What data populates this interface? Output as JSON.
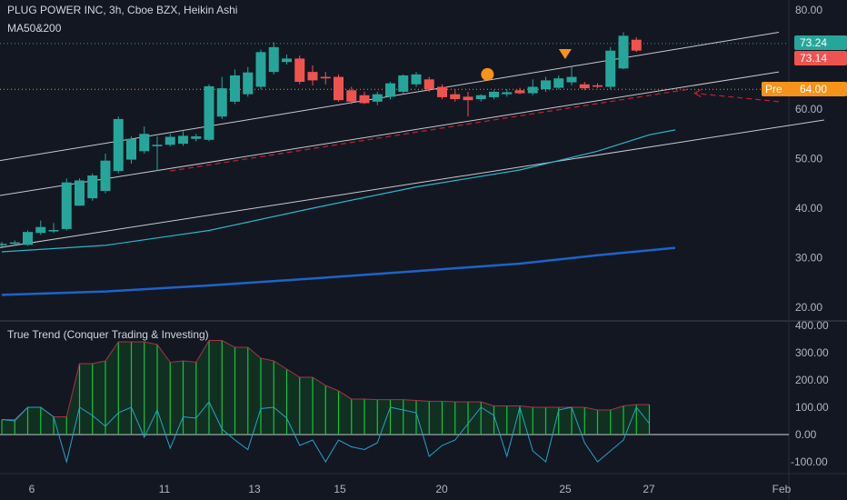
{
  "header": {
    "symbol_line": "PLUG POWER INC, 3h, Cboe BZX, Heikin Ashi",
    "indicator": "MA50&200"
  },
  "osc": {
    "title": "True Trend (Conquer Trading & Investing)"
  },
  "price_tags": {
    "last_close": "73.24",
    "last_red": "73.14",
    "pre_label": "Pre",
    "pre_value": "64.00"
  },
  "colors": {
    "background": "#131722",
    "up": "#26a69a",
    "down": "#ef5350",
    "ma50": "#2ab6c8",
    "ma200": "#1e63c9",
    "channel": "#c9c9d1",
    "pre": "#f7931a",
    "trend_fill": "#0a7d24",
    "trend_line": "#a53545",
    "signal": "#22a5c9"
  },
  "chart_data": [
    {
      "type": "candlestick",
      "title": "PLUG POWER INC, 3h, Cboe BZX, Heikin Ashi",
      "ylim": [
        16,
        83
      ],
      "y_ticks": [
        "80.00",
        "70.00",
        "60.00",
        "50.00",
        "40.00",
        "30.00",
        "20.00"
      ],
      "x_ticks": [
        "6",
        "11",
        "13",
        "15",
        "20",
        "25",
        "27",
        "Feb"
      ],
      "candles": [
        {
          "o": 32.5,
          "h": 33.2,
          "l": 32.2,
          "c": 32.8
        },
        {
          "o": 32.8,
          "h": 33.5,
          "l": 32.5,
          "c": 33.1
        },
        {
          "o": 32.6,
          "h": 35.5,
          "l": 32.4,
          "c": 35.2
        },
        {
          "o": 35.0,
          "h": 37.5,
          "l": 34.6,
          "c": 36.2
        },
        {
          "o": 35.3,
          "h": 37.0,
          "l": 35.0,
          "c": 35.6
        },
        {
          "o": 35.8,
          "h": 46.0,
          "l": 35.5,
          "c": 45.2
        },
        {
          "o": 40.5,
          "h": 46.0,
          "l": 40.5,
          "c": 45.6
        },
        {
          "o": 42.0,
          "h": 47.0,
          "l": 41.5,
          "c": 46.6
        },
        {
          "o": 43.5,
          "h": 51.0,
          "l": 43.0,
          "c": 49.6
        },
        {
          "o": 47.5,
          "h": 58.5,
          "l": 47.0,
          "c": 58.0
        },
        {
          "o": 49.8,
          "h": 54.5,
          "l": 49.0,
          "c": 54.0
        },
        {
          "o": 51.5,
          "h": 56.5,
          "l": 51.0,
          "c": 55.0
        },
        {
          "o": 52.5,
          "h": 54.5,
          "l": 47.5,
          "c": 52.8
        },
        {
          "o": 52.8,
          "h": 55.0,
          "l": 52.5,
          "c": 54.4
        },
        {
          "o": 53.0,
          "h": 55.5,
          "l": 52.6,
          "c": 54.6
        },
        {
          "o": 54.0,
          "h": 55.0,
          "l": 53.5,
          "c": 54.5
        },
        {
          "o": 53.8,
          "h": 65.0,
          "l": 53.5,
          "c": 64.6
        },
        {
          "o": 58.5,
          "h": 66.5,
          "l": 58.0,
          "c": 64.2
        },
        {
          "o": 61.5,
          "h": 68.0,
          "l": 61.0,
          "c": 66.8
        },
        {
          "o": 63.0,
          "h": 68.5,
          "l": 62.5,
          "c": 67.4
        },
        {
          "o": 64.5,
          "h": 72.0,
          "l": 64.0,
          "c": 71.5
        },
        {
          "o": 67.5,
          "h": 73.5,
          "l": 67.0,
          "c": 72.5
        },
        {
          "o": 69.5,
          "h": 71.0,
          "l": 69.0,
          "c": 70.2
        },
        {
          "o": 70.2,
          "h": 70.8,
          "l": 65.0,
          "c": 65.5
        },
        {
          "o": 67.5,
          "h": 68.8,
          "l": 64.8,
          "c": 65.8
        },
        {
          "o": 66.5,
          "h": 67.5,
          "l": 65.0,
          "c": 66.2
        },
        {
          "o": 66.5,
          "h": 67.0,
          "l": 61.5,
          "c": 61.8
        },
        {
          "o": 63.8,
          "h": 64.5,
          "l": 61.0,
          "c": 61.5
        },
        {
          "o": 62.8,
          "h": 63.5,
          "l": 61.0,
          "c": 61.2
        },
        {
          "o": 61.5,
          "h": 63.5,
          "l": 60.8,
          "c": 63.0
        },
        {
          "o": 62.5,
          "h": 65.5,
          "l": 62.0,
          "c": 65.2
        },
        {
          "o": 63.5,
          "h": 67.0,
          "l": 63.0,
          "c": 66.8
        },
        {
          "o": 65.0,
          "h": 67.5,
          "l": 64.5,
          "c": 67.0
        },
        {
          "o": 66.0,
          "h": 66.5,
          "l": 63.5,
          "c": 64.0
        },
        {
          "o": 64.5,
          "h": 65.0,
          "l": 62.0,
          "c": 62.4
        },
        {
          "o": 63.0,
          "h": 64.0,
          "l": 61.5,
          "c": 62.0
        },
        {
          "o": 62.5,
          "h": 63.5,
          "l": 58.5,
          "c": 61.8
        },
        {
          "o": 62.0,
          "h": 63.0,
          "l": 61.5,
          "c": 62.8
        },
        {
          "o": 62.4,
          "h": 63.8,
          "l": 62.0,
          "c": 63.5
        },
        {
          "o": 63.0,
          "h": 64.0,
          "l": 62.5,
          "c": 63.4
        },
        {
          "o": 63.8,
          "h": 64.3,
          "l": 63.0,
          "c": 63.2
        },
        {
          "o": 63.2,
          "h": 66.0,
          "l": 62.8,
          "c": 64.5
        },
        {
          "o": 64.0,
          "h": 66.5,
          "l": 63.5,
          "c": 65.8
        },
        {
          "o": 64.3,
          "h": 66.8,
          "l": 64.0,
          "c": 66.2
        },
        {
          "o": 65.4,
          "h": 68.5,
          "l": 64.8,
          "c": 66.5
        },
        {
          "o": 65.0,
          "h": 65.5,
          "l": 63.8,
          "c": 64.2
        },
        {
          "o": 64.8,
          "h": 65.2,
          "l": 64.2,
          "c": 64.5
        },
        {
          "o": 64.5,
          "h": 72.5,
          "l": 64.0,
          "c": 71.8
        },
        {
          "o": 68.2,
          "h": 75.5,
          "l": 68.0,
          "c": 74.8
        },
        {
          "o": 74.0,
          "h": 74.5,
          "l": 71.5,
          "c": 71.8
        }
      ],
      "ma50": [
        [
          0,
          31.2
        ],
        [
          8,
          32.5
        ],
        [
          16,
          35.5
        ],
        [
          24,
          40.0
        ],
        [
          32,
          44.3
        ],
        [
          40,
          47.7
        ],
        [
          46,
          51.5
        ],
        [
          50,
          54.8
        ],
        [
          52,
          55.8
        ]
      ],
      "ma200": [
        [
          0,
          22.5
        ],
        [
          8,
          23.2
        ],
        [
          16,
          24.4
        ],
        [
          24,
          25.8
        ],
        [
          32,
          27.3
        ],
        [
          40,
          28.8
        ],
        [
          46,
          30.5
        ],
        [
          52,
          32.0
        ]
      ],
      "channel_lines": [
        {
          "from": [
            -2,
            48.8
          ],
          "to": [
            60,
            75.5
          ]
        },
        {
          "from": [
            -2,
            41.8
          ],
          "to": [
            60,
            67.5
          ]
        },
        {
          "from": [
            -2,
            31.3
          ],
          "to": [
            63.5,
            57.8
          ]
        }
      ],
      "dashed_trend": {
        "from": [
          13,
          47.5
        ],
        "to": [
          53,
          64.0
        ]
      },
      "dashed_arrow": {
        "from": [
          60,
          61.5
        ],
        "to": [
          53.5,
          63.2
        ]
      },
      "markers": [
        {
          "type": "circle",
          "index": 37.5,
          "y": 67.0
        },
        {
          "type": "triangle-down",
          "index": 43.5,
          "y": 71.2
        }
      ],
      "pre_market_level": 64.0,
      "last_close_level": 73.24
    },
    {
      "type": "column+line",
      "title": "True Trend (Conquer Trading & Investing)",
      "ylim": [
        -150,
        420
      ],
      "y_ticks": [
        "400.00",
        "300.00",
        "200.00",
        "100.00",
        "0.00",
        "-100.00"
      ],
      "trend_values": [
        55,
        55,
        100,
        100,
        65,
        65,
        260,
        260,
        270,
        340,
        340,
        340,
        330,
        265,
        270,
        265,
        345,
        345,
        320,
        320,
        280,
        270,
        240,
        210,
        210,
        180,
        160,
        130,
        130,
        128,
        128,
        128,
        125,
        122,
        122,
        120,
        120,
        120,
        105,
        105,
        105,
        100,
        100,
        100,
        100,
        100,
        90,
        90,
        105,
        110,
        110
      ],
      "signal_values": [
        55,
        50,
        100,
        100,
        65,
        -100,
        100,
        70,
        30,
        80,
        100,
        -10,
        90,
        -50,
        65,
        60,
        120,
        20,
        -20,
        -55,
        95,
        100,
        60,
        -40,
        -20,
        -100,
        -20,
        -45,
        -55,
        -30,
        100,
        90,
        80,
        -80,
        -40,
        -20,
        40,
        100,
        70,
        -80,
        100,
        -60,
        -100,
        90,
        100,
        -30,
        -100,
        -60,
        -20,
        100,
        40
      ]
    }
  ]
}
